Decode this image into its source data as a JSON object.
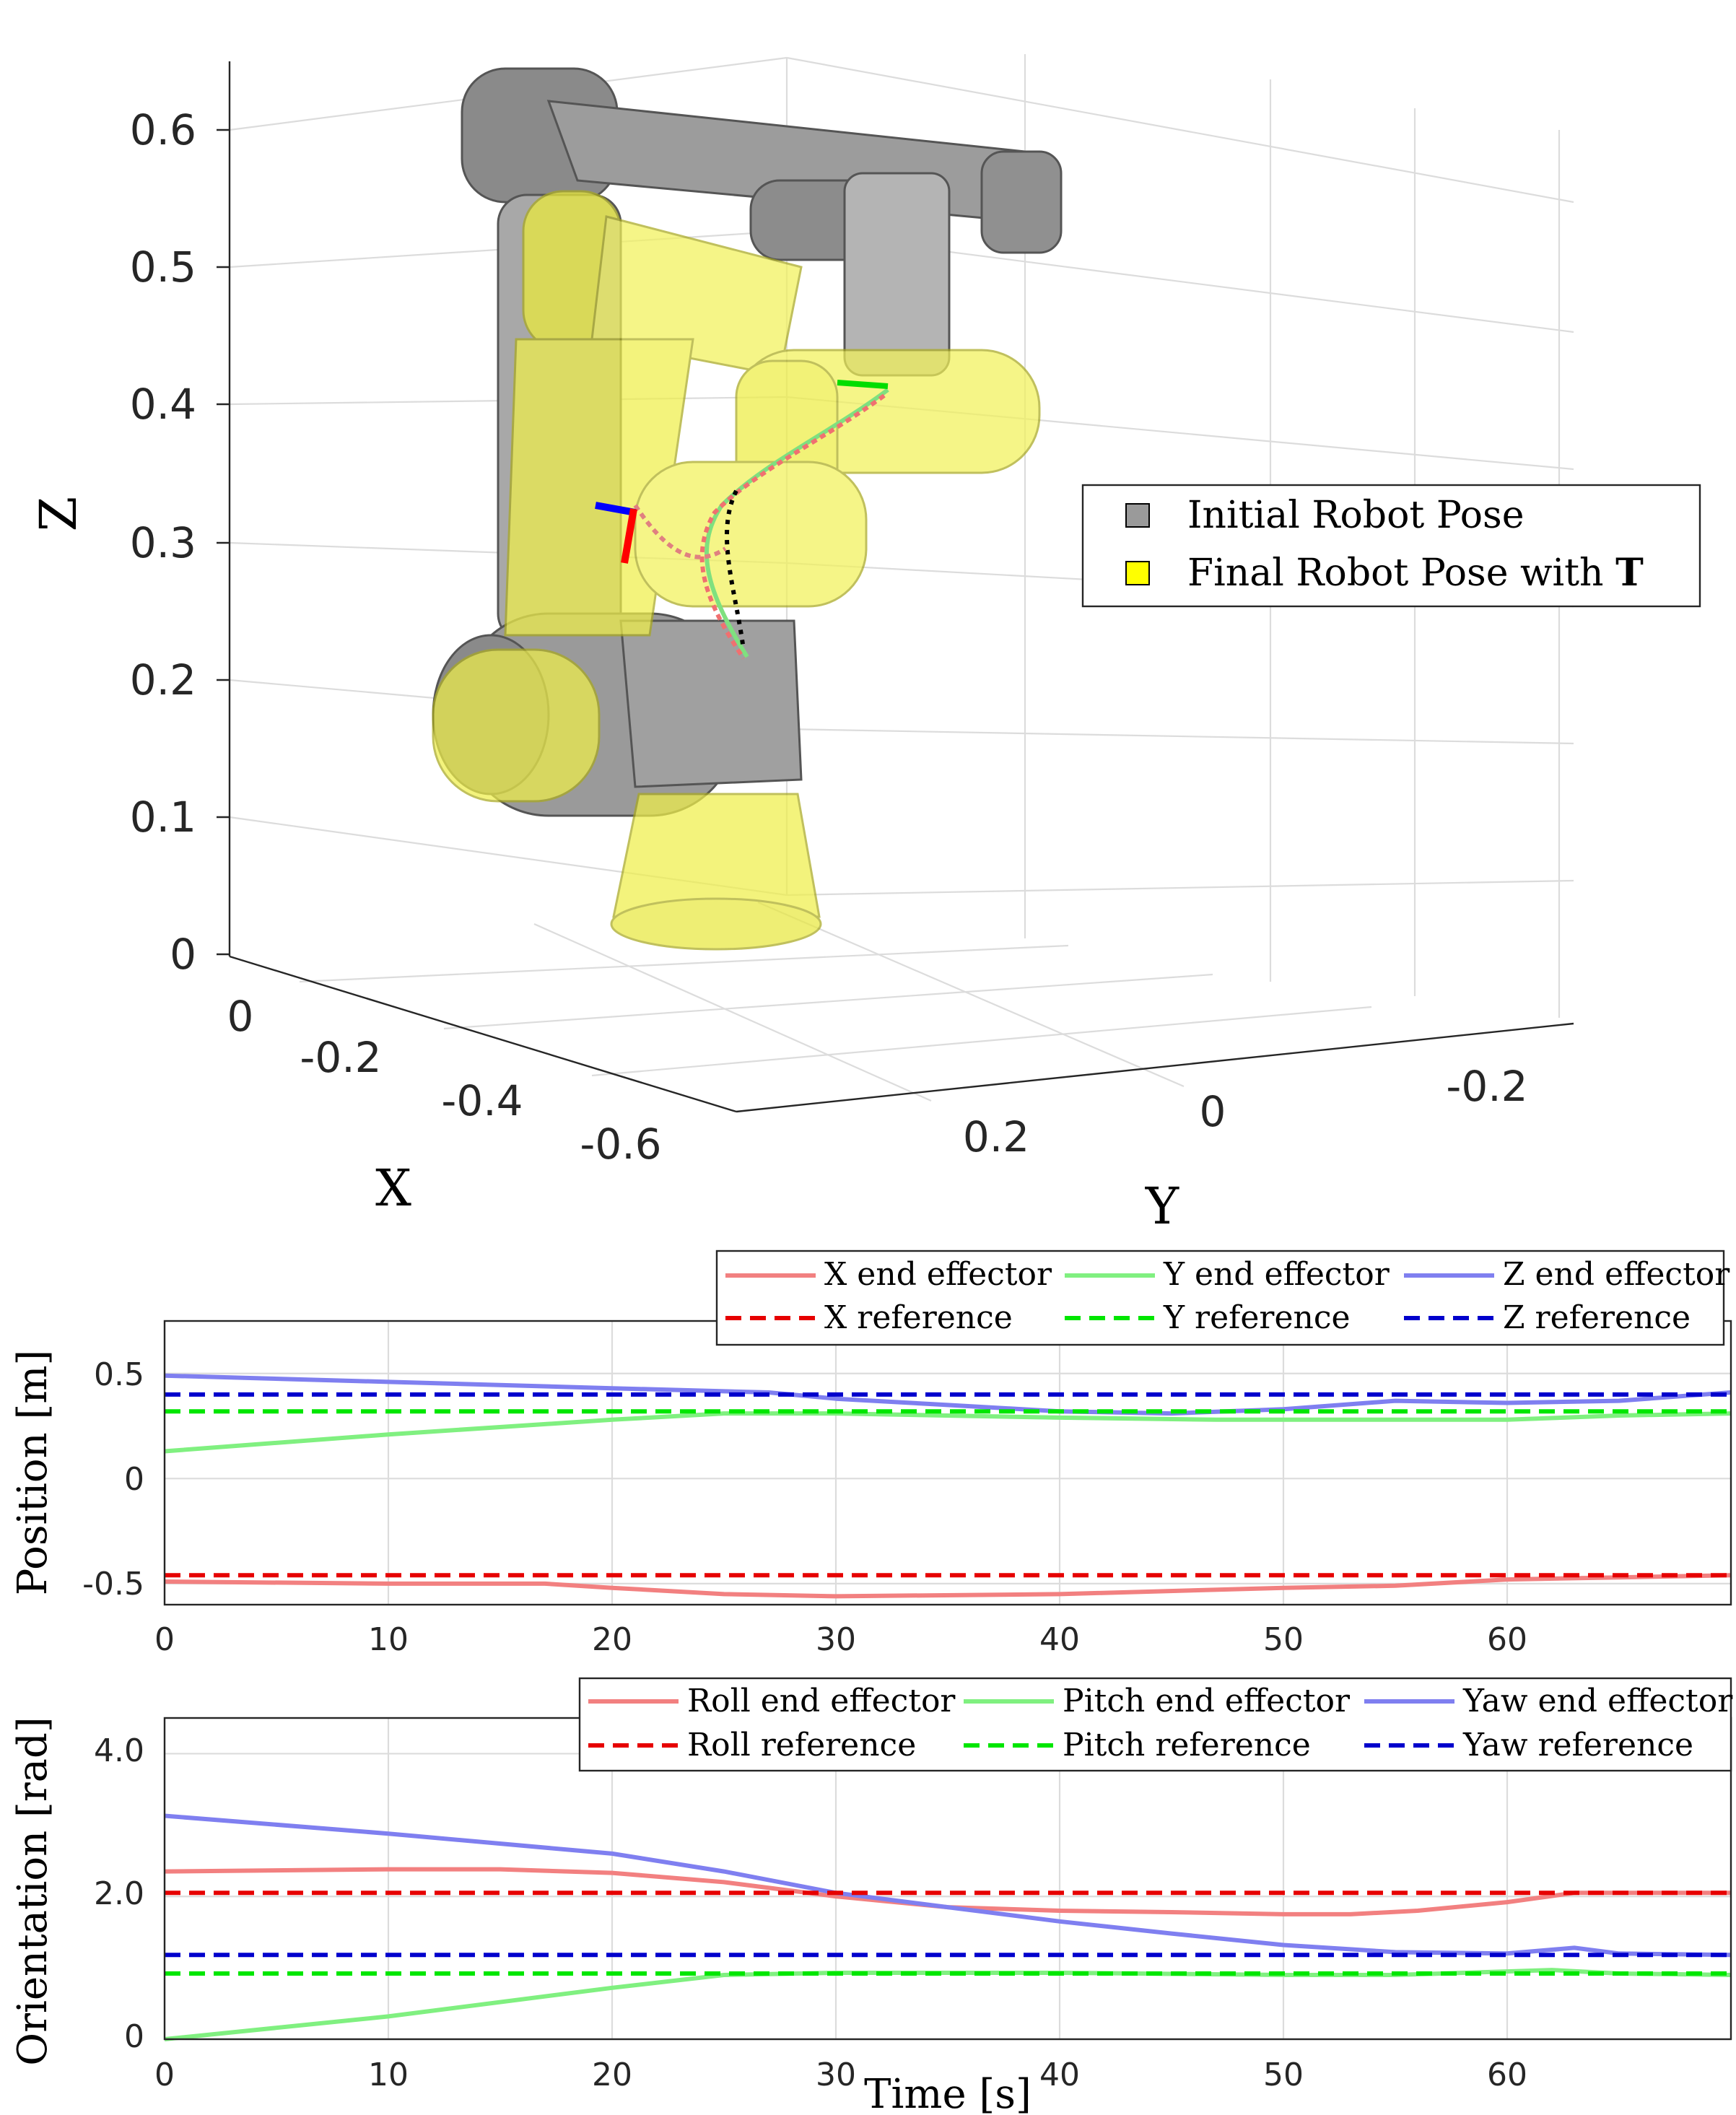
{
  "chart_data": [
    {
      "type": "3d-scene",
      "axes": {
        "xlabel": "X",
        "ylabel": "Y",
        "zlabel": "Z",
        "x_ticks": [
          "0",
          "-0.2",
          "-0.4",
          "-0.6"
        ],
        "y_ticks": [
          "0.2",
          "0",
          "-0.2"
        ],
        "z_ticks": [
          "0.6",
          "0.5",
          "0.4",
          "0.3",
          "0.2",
          "0.1",
          "0"
        ],
        "zlim": [
          0,
          0.65
        ],
        "grid": true
      },
      "legend": {
        "placement": "right",
        "entries": [
          {
            "label": "Initial Robot Pose",
            "color": "#9a9a9a"
          },
          {
            "label_prefix": "Final Robot Pose with ",
            "label_bold": "T",
            "color": "#ffff00"
          }
        ]
      }
    },
    {
      "type": "line",
      "xlabel": "",
      "ylabel": "Position [m]",
      "xlim": [
        0,
        70
      ],
      "ylim": [
        -0.6,
        0.75
      ],
      "x_ticks": [
        "0",
        "10",
        "20",
        "30",
        "40",
        "50",
        "60"
      ],
      "y_ticks": [
        "0.5",
        "0",
        "-0.5"
      ],
      "grid": true,
      "legend": {
        "placement": "top-right",
        "columns": 3
      },
      "series": [
        {
          "name": "X end effector",
          "style": "solid",
          "color": "#f28080",
          "points": [
            [
              0,
              -0.49
            ],
            [
              10,
              -0.5
            ],
            [
              17,
              -0.5
            ],
            [
              20,
              -0.52
            ],
            [
              25,
              -0.55
            ],
            [
              30,
              -0.56
            ],
            [
              40,
              -0.55
            ],
            [
              50,
              -0.52
            ],
            [
              55,
              -0.51
            ],
            [
              60,
              -0.48
            ],
            [
              65,
              -0.47
            ],
            [
              70,
              -0.46
            ]
          ]
        },
        {
          "name": "Y end effector",
          "style": "solid",
          "color": "#80f080",
          "points": [
            [
              0,
              0.13
            ],
            [
              10,
              0.21
            ],
            [
              20,
              0.28
            ],
            [
              25,
              0.31
            ],
            [
              30,
              0.31
            ],
            [
              40,
              0.29
            ],
            [
              47,
              0.28
            ],
            [
              55,
              0.28
            ],
            [
              60,
              0.28
            ],
            [
              65,
              0.3
            ],
            [
              70,
              0.31
            ]
          ]
        },
        {
          "name": "Z end effector",
          "style": "solid",
          "color": "#7f7ff0",
          "points": [
            [
              0,
              0.49
            ],
            [
              10,
              0.46
            ],
            [
              20,
              0.43
            ],
            [
              27,
              0.41
            ],
            [
              30,
              0.38
            ],
            [
              35,
              0.35
            ],
            [
              40,
              0.32
            ],
            [
              45,
              0.31
            ],
            [
              50,
              0.33
            ],
            [
              55,
              0.37
            ],
            [
              60,
              0.36
            ],
            [
              65,
              0.37
            ],
            [
              70,
              0.41
            ]
          ]
        },
        {
          "name": "X reference",
          "style": "dashed",
          "color": "#e60000",
          "points": [
            [
              0,
              -0.46
            ],
            [
              70,
              -0.46
            ]
          ]
        },
        {
          "name": "Y reference",
          "style": "dashed",
          "color": "#00e600",
          "points": [
            [
              0,
              0.32
            ],
            [
              70,
              0.32
            ]
          ]
        },
        {
          "name": "Z reference",
          "style": "dashed",
          "color": "#0000cc",
          "points": [
            [
              0,
              0.4
            ],
            [
              70,
              0.4
            ]
          ]
        }
      ]
    },
    {
      "type": "line",
      "xlabel": "Time [s]",
      "ylabel": "Orientation [rad]",
      "xlim": [
        0,
        70
      ],
      "ylim": [
        0,
        4.5
      ],
      "x_ticks": [
        "0",
        "10",
        "20",
        "30",
        "40",
        "50",
        "60"
      ],
      "y_ticks": [
        "4.0",
        "2.0",
        "0"
      ],
      "grid": true,
      "legend": {
        "placement": "top-right",
        "columns": 3
      },
      "series": [
        {
          "name": "Roll end effector",
          "style": "solid",
          "color": "#f28080",
          "points": [
            [
              0,
              2.35
            ],
            [
              10,
              2.38
            ],
            [
              15,
              2.38
            ],
            [
              20,
              2.33
            ],
            [
              25,
              2.2
            ],
            [
              30,
              2.0
            ],
            [
              35,
              1.85
            ],
            [
              40,
              1.8
            ],
            [
              45,
              1.78
            ],
            [
              50,
              1.75
            ],
            [
              53,
              1.75
            ],
            [
              56,
              1.8
            ],
            [
              60,
              1.92
            ],
            [
              63,
              2.05
            ],
            [
              65,
              2.05
            ],
            [
              70,
              2.05
            ]
          ]
        },
        {
          "name": "Pitch end effector",
          "style": "solid",
          "color": "#80f080",
          "points": [
            [
              0,
              0.0
            ],
            [
              10,
              0.32
            ],
            [
              20,
              0.72
            ],
            [
              25,
              0.9
            ],
            [
              30,
              0.93
            ],
            [
              40,
              0.93
            ],
            [
              50,
              0.9
            ],
            [
              55,
              0.9
            ],
            [
              60,
              0.95
            ],
            [
              62,
              0.97
            ],
            [
              65,
              0.92
            ],
            [
              70,
              0.9
            ]
          ]
        },
        {
          "name": "Yaw end effector",
          "style": "solid",
          "color": "#7f7ff0",
          "points": [
            [
              0,
              3.13
            ],
            [
              10,
              2.88
            ],
            [
              20,
              2.6
            ],
            [
              25,
              2.35
            ],
            [
              30,
              2.05
            ],
            [
              35,
              1.85
            ],
            [
              40,
              1.65
            ],
            [
              45,
              1.48
            ],
            [
              50,
              1.32
            ],
            [
              55,
              1.22
            ],
            [
              60,
              1.2
            ],
            [
              63,
              1.28
            ],
            [
              65,
              1.2
            ],
            [
              70,
              1.18
            ]
          ]
        },
        {
          "name": "Roll reference",
          "style": "dashed",
          "color": "#e60000",
          "points": [
            [
              0,
              2.05
            ],
            [
              70,
              2.05
            ]
          ]
        },
        {
          "name": "Pitch reference",
          "style": "dashed",
          "color": "#00e600",
          "points": [
            [
              0,
              0.92
            ],
            [
              70,
              0.92
            ]
          ]
        },
        {
          "name": "Yaw reference",
          "style": "dashed",
          "color": "#0000cc",
          "points": [
            [
              0,
              1.18
            ],
            [
              70,
              1.18
            ]
          ]
        }
      ]
    }
  ]
}
